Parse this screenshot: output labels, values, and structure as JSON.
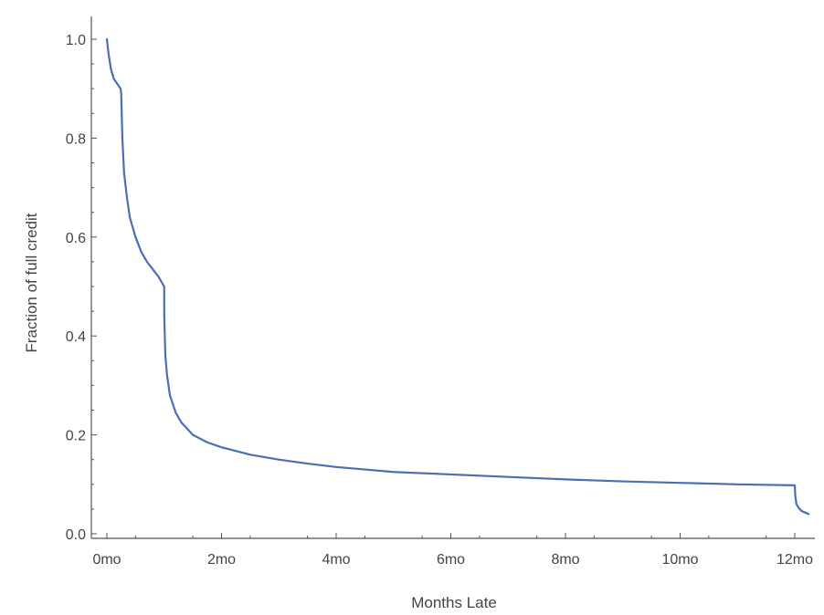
{
  "chart_data": {
    "type": "line",
    "title": "",
    "xlabel": "Months Late",
    "ylabel": "Fraction of full credit",
    "xlim": [
      -0.25,
      12.35
    ],
    "ylim": [
      0.0,
      1.05
    ],
    "x_ticks": [
      {
        "value": 0,
        "label": "0mo"
      },
      {
        "value": 2,
        "label": "2mo"
      },
      {
        "value": 4,
        "label": "4mo"
      },
      {
        "value": 6,
        "label": "6mo"
      },
      {
        "value": 8,
        "label": "8mo"
      },
      {
        "value": 10,
        "label": "10mo"
      },
      {
        "value": 12,
        "label": "12mo"
      }
    ],
    "y_ticks": [
      {
        "value": 0.0,
        "label": "0.0"
      },
      {
        "value": 0.2,
        "label": "0.2"
      },
      {
        "value": 0.4,
        "label": "0.4"
      },
      {
        "value": 0.6,
        "label": "0.6"
      },
      {
        "value": 0.8,
        "label": "0.8"
      },
      {
        "value": 1.0,
        "label": "1.0"
      }
    ],
    "grid": false,
    "line_color": "#4a6fb5",
    "series": [
      {
        "x": [
          0.0,
          0.03,
          0.07,
          0.12,
          0.18,
          0.24,
          0.25,
          0.27,
          0.3,
          0.35,
          0.4,
          0.5,
          0.6,
          0.7,
          0.8,
          0.9,
          1.0,
          1.001,
          1.02,
          1.05,
          1.1,
          1.2,
          1.3,
          1.5,
          1.75,
          2.0,
          2.5,
          3.0,
          3.5,
          4.0,
          5.0,
          6.0,
          7.0,
          8.0,
          9.0,
          10.0,
          11.0,
          12.0,
          12.01,
          12.03,
          12.07,
          12.12,
          12.18,
          12.24
        ],
        "y": [
          1.0,
          0.97,
          0.94,
          0.92,
          0.91,
          0.9,
          0.89,
          0.8,
          0.73,
          0.68,
          0.64,
          0.6,
          0.57,
          0.55,
          0.535,
          0.52,
          0.5,
          0.44,
          0.36,
          0.32,
          0.28,
          0.245,
          0.225,
          0.2,
          0.185,
          0.175,
          0.16,
          0.15,
          0.142,
          0.135,
          0.125,
          0.12,
          0.115,
          0.11,
          0.106,
          0.103,
          0.1,
          0.098,
          0.075,
          0.06,
          0.052,
          0.046,
          0.043,
          0.04
        ]
      }
    ]
  }
}
